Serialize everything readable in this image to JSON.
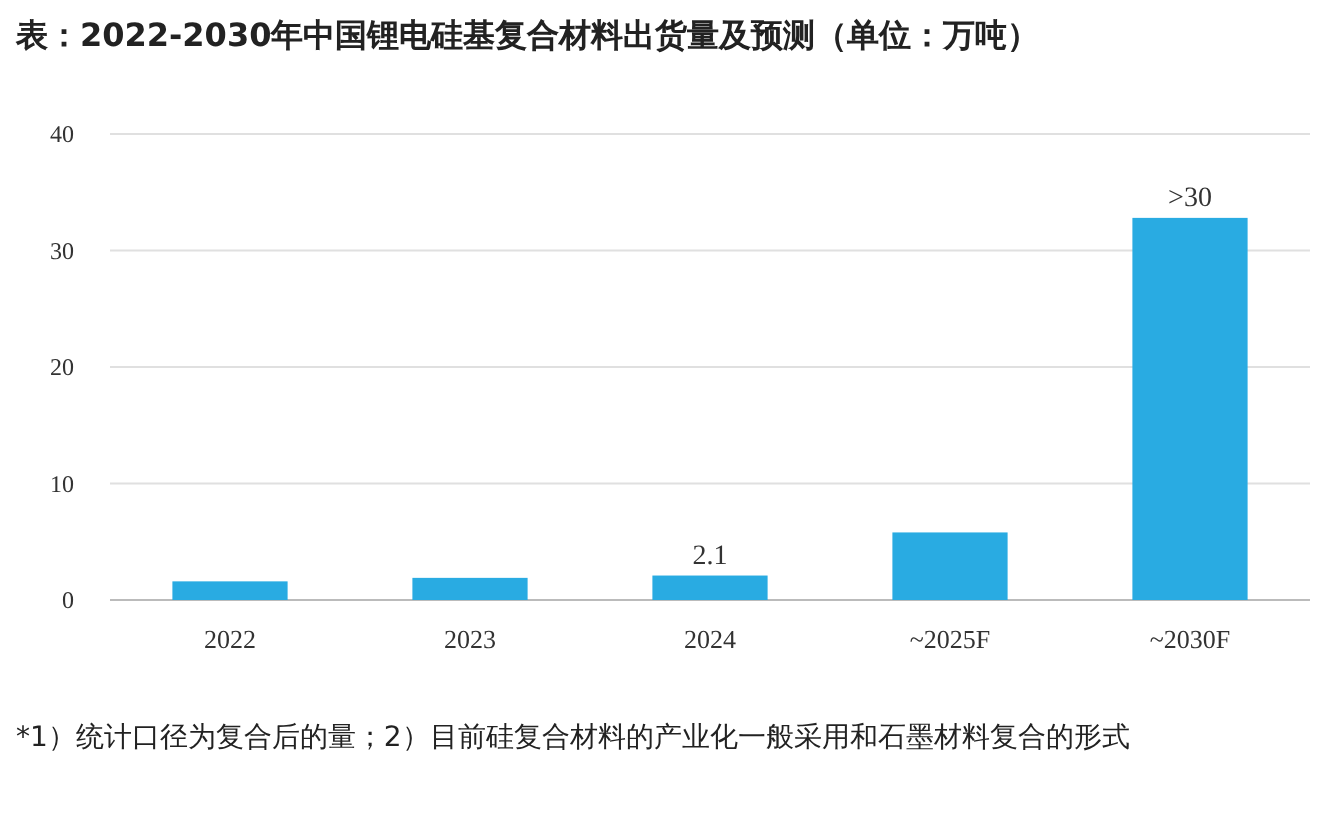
{
  "chart_data": {
    "type": "bar",
    "title": "表：2022-2030年中国锂电硅基复合材料出货量及预测（单位：万吨）",
    "categories": [
      "2022",
      "2023",
      "2024",
      "~2025F",
      "~2030F"
    ],
    "values": [
      1.6,
      1.9,
      2.1,
      5.8,
      32.8
    ],
    "value_labels": [
      null,
      null,
      "2.1",
      null,
      ">30"
    ],
    "color": "#29abe2",
    "ylim": [
      0,
      40
    ],
    "yticks": [
      0,
      10,
      20,
      30,
      40
    ],
    "grid": "y",
    "annotations": [
      "*1）统计口径为复合后的量；2）目前硅复合材料的产业化一般采用和石墨材料复合的形式"
    ]
  }
}
